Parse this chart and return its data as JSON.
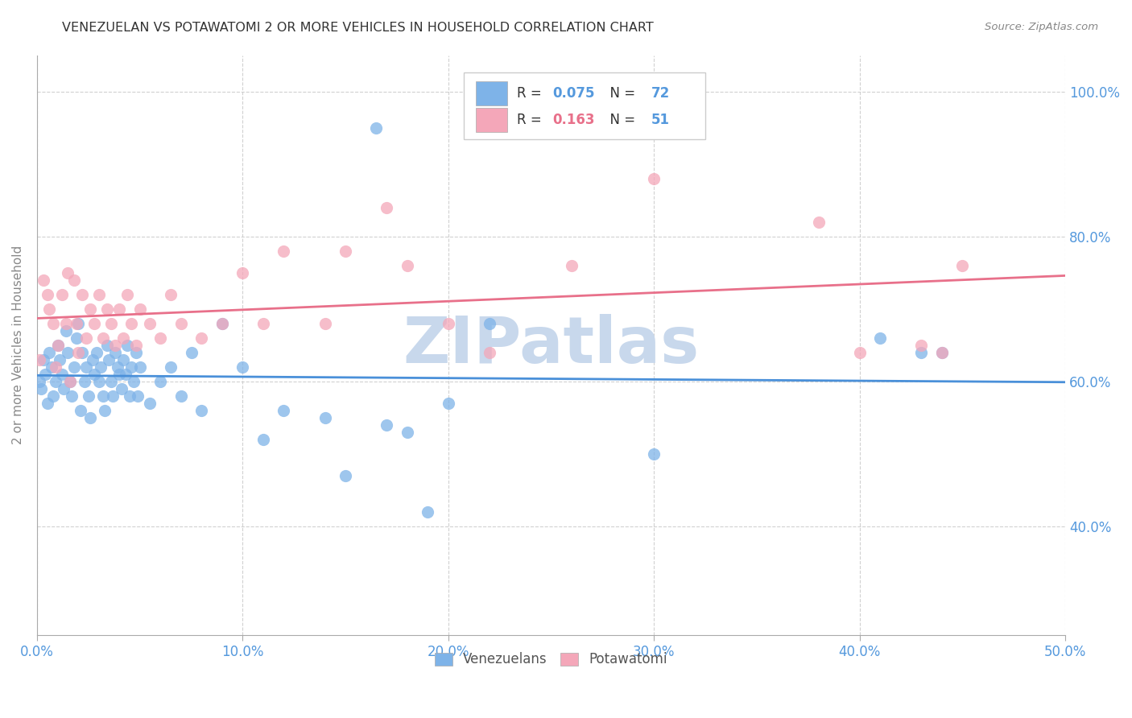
{
  "title": "VENEZUELAN VS POTAWATOMI 2 OR MORE VEHICLES IN HOUSEHOLD CORRELATION CHART",
  "source": "Source: ZipAtlas.com",
  "xlabel_ticks": [
    "0.0%",
    "10.0%",
    "20.0%",
    "30.0%",
    "40.0%",
    "50.0%"
  ],
  "ylabel_ticks": [
    "40.0%",
    "60.0%",
    "80.0%",
    "100.0%"
  ],
  "ylabel_label": "2 or more Vehicles in Household",
  "legend_label1": "Venezuelans",
  "legend_label2": "Potawatomi",
  "R1": "0.075",
  "N1": "72",
  "R2": "0.163",
  "N2": "51",
  "blue_color": "#7EB3E8",
  "pink_color": "#F4A7B9",
  "blue_line_color": "#4A90D9",
  "pink_line_color": "#E8708A",
  "watermark_text": "ZIPatlas",
  "watermark_color": "#C8D8EC",
  "xmin": 0.0,
  "xmax": 0.5,
  "ymin": 0.25,
  "ymax": 1.05,
  "y_tick_vals": [
    0.4,
    0.6,
    0.8,
    1.0
  ],
  "x_tick_vals": [
    0.0,
    0.1,
    0.2,
    0.3,
    0.4,
    0.5
  ],
  "venezuelan_x": [
    0.001,
    0.002,
    0.003,
    0.004,
    0.005,
    0.006,
    0.007,
    0.008,
    0.009,
    0.01,
    0.011,
    0.012,
    0.013,
    0.014,
    0.015,
    0.016,
    0.017,
    0.018,
    0.019,
    0.02,
    0.021,
    0.022,
    0.023,
    0.024,
    0.025,
    0.026,
    0.027,
    0.028,
    0.029,
    0.03,
    0.031,
    0.032,
    0.033,
    0.034,
    0.035,
    0.036,
    0.037,
    0.038,
    0.039,
    0.04,
    0.041,
    0.042,
    0.043,
    0.044,
    0.045,
    0.046,
    0.047,
    0.048,
    0.049,
    0.05,
    0.055,
    0.06,
    0.065,
    0.07,
    0.075,
    0.08,
    0.09,
    0.1,
    0.11,
    0.12,
    0.14,
    0.15,
    0.17,
    0.18,
    0.2,
    0.22,
    0.165,
    0.19,
    0.3,
    0.41,
    0.43,
    0.44
  ],
  "venezuelan_y": [
    0.6,
    0.59,
    0.63,
    0.61,
    0.57,
    0.64,
    0.62,
    0.58,
    0.6,
    0.65,
    0.63,
    0.61,
    0.59,
    0.67,
    0.64,
    0.6,
    0.58,
    0.62,
    0.66,
    0.68,
    0.56,
    0.64,
    0.6,
    0.62,
    0.58,
    0.55,
    0.63,
    0.61,
    0.64,
    0.6,
    0.62,
    0.58,
    0.56,
    0.65,
    0.63,
    0.6,
    0.58,
    0.64,
    0.62,
    0.61,
    0.59,
    0.63,
    0.61,
    0.65,
    0.58,
    0.62,
    0.6,
    0.64,
    0.58,
    0.62,
    0.57,
    0.6,
    0.62,
    0.58,
    0.64,
    0.56,
    0.68,
    0.62,
    0.52,
    0.56,
    0.55,
    0.47,
    0.54,
    0.53,
    0.57,
    0.68,
    0.95,
    0.42,
    0.5,
    0.66,
    0.64,
    0.64
  ],
  "potawatomi_x": [
    0.001,
    0.003,
    0.005,
    0.006,
    0.008,
    0.009,
    0.01,
    0.012,
    0.014,
    0.015,
    0.016,
    0.018,
    0.019,
    0.02,
    0.022,
    0.024,
    0.026,
    0.028,
    0.03,
    0.032,
    0.034,
    0.036,
    0.038,
    0.04,
    0.042,
    0.044,
    0.046,
    0.048,
    0.05,
    0.055,
    0.06,
    0.065,
    0.07,
    0.08,
    0.09,
    0.1,
    0.11,
    0.12,
    0.14,
    0.15,
    0.17,
    0.18,
    0.2,
    0.22,
    0.26,
    0.3,
    0.38,
    0.4,
    0.43,
    0.44,
    0.45
  ],
  "potawatomi_y": [
    0.63,
    0.74,
    0.72,
    0.7,
    0.68,
    0.62,
    0.65,
    0.72,
    0.68,
    0.75,
    0.6,
    0.74,
    0.68,
    0.64,
    0.72,
    0.66,
    0.7,
    0.68,
    0.72,
    0.66,
    0.7,
    0.68,
    0.65,
    0.7,
    0.66,
    0.72,
    0.68,
    0.65,
    0.7,
    0.68,
    0.66,
    0.72,
    0.68,
    0.66,
    0.68,
    0.75,
    0.68,
    0.78,
    0.68,
    0.78,
    0.84,
    0.76,
    0.68,
    0.64,
    0.76,
    0.88,
    0.82,
    0.64,
    0.65,
    0.64,
    0.76
  ]
}
